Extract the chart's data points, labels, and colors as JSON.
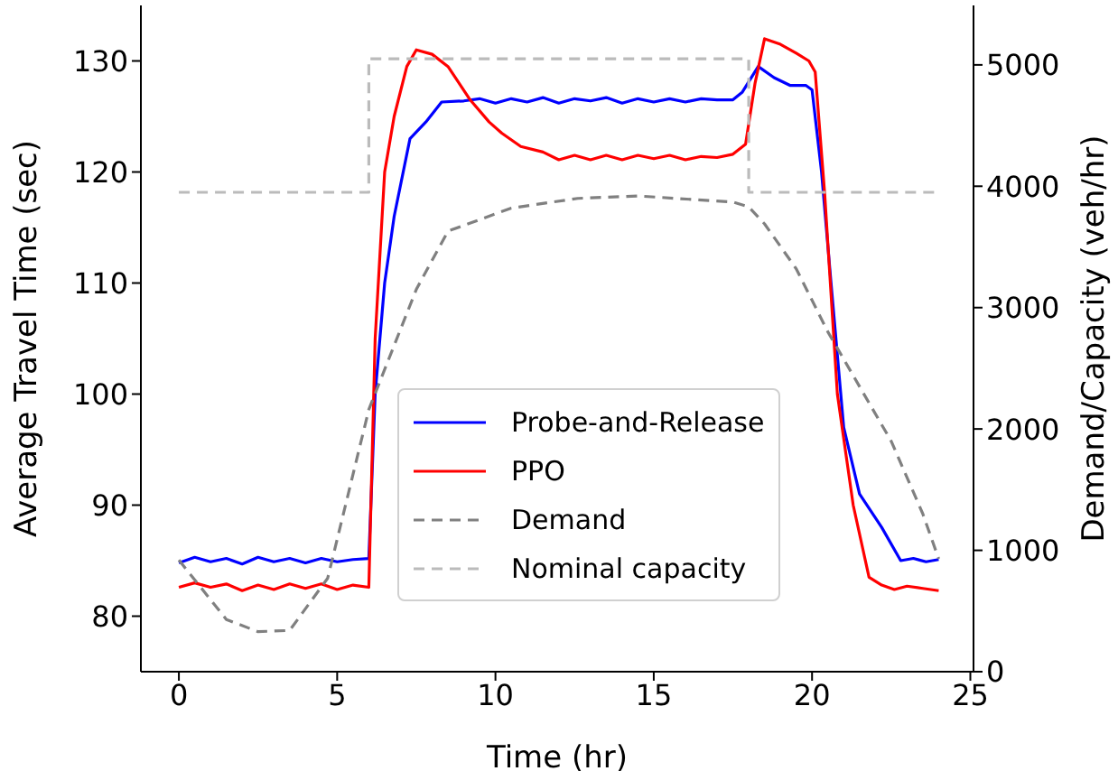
{
  "chart_data": {
    "type": "line",
    "xlabel": "Time (hr)",
    "ylabel": "Average Travel Time (sec)",
    "y2label": "Demand/Capacity (veh/hr)",
    "xlim": [
      -1.2,
      25.1
    ],
    "xticks": [
      0,
      5,
      10,
      15,
      20,
      25
    ],
    "ylim": [
      75,
      135
    ],
    "yticks": [
      80,
      90,
      100,
      110,
      120,
      130
    ],
    "y2lim": [
      0,
      5490
    ],
    "y2ticks": [
      0,
      1000,
      2000,
      3000,
      4000,
      5000
    ],
    "grid": false,
    "legend": "bottom",
    "marker": "none",
    "series": [
      {
        "name": "Probe-and-Release",
        "color": "#0000ff",
        "line_style": "solid",
        "x": [
          0,
          0.5,
          1,
          1.5,
          2,
          2.5,
          3,
          3.5,
          4,
          4.5,
          5,
          5.5,
          6,
          6.2,
          6.5,
          6.8,
          7.3,
          7.8,
          8.3,
          9,
          9.5,
          10,
          10.5,
          11,
          11.5,
          12,
          12.5,
          13,
          13.5,
          14,
          14.5,
          15,
          15.5,
          16,
          16.5,
          17,
          17.5,
          17.8,
          18.3,
          18.8,
          19.3,
          19.8,
          20.0,
          20.3,
          20.6,
          21.0,
          21.5,
          22.2,
          22.8,
          23.2,
          23.6,
          24
        ],
        "values": [
          84.8,
          85.3,
          84.9,
          85.2,
          84.7,
          85.3,
          84.9,
          85.2,
          84.8,
          85.2,
          84.9,
          85.1,
          85.2,
          100,
          110,
          116,
          123,
          124.5,
          126.3,
          126.4,
          126.6,
          126.2,
          126.6,
          126.3,
          126.7,
          126.2,
          126.6,
          126.4,
          126.7,
          126.2,
          126.6,
          126.3,
          126.6,
          126.3,
          126.6,
          126.5,
          126.5,
          127.2,
          129.5,
          128.5,
          127.8,
          127.8,
          127.4,
          120,
          110,
          97,
          91,
          88,
          85,
          85.2,
          84.9,
          85.1
        ]
      },
      {
        "name": "PPO",
        "color": "#ff0000",
        "line_style": "solid",
        "x": [
          0,
          0.5,
          1,
          1.5,
          2,
          2.5,
          3,
          3.5,
          4,
          4.5,
          5,
          5.5,
          6,
          6.2,
          6.5,
          6.8,
          7.2,
          7.5,
          8.0,
          8.5,
          9.2,
          9.8,
          10.2,
          10.8,
          11.5,
          12,
          12.5,
          13,
          13.5,
          14,
          14.5,
          15,
          15.5,
          16,
          16.5,
          17,
          17.5,
          17.9,
          18.2,
          18.5,
          19.0,
          19.5,
          19.9,
          20.1,
          20.4,
          20.8,
          21.3,
          21.8,
          22.2,
          22.6,
          23,
          23.5,
          24
        ],
        "values": [
          82.6,
          83.0,
          82.6,
          82.9,
          82.3,
          82.8,
          82.4,
          82.9,
          82.5,
          82.9,
          82.4,
          82.8,
          82.6,
          105,
          120,
          125,
          129.5,
          131,
          130.6,
          129.5,
          126.5,
          124.5,
          123.5,
          122.3,
          121.8,
          121.1,
          121.5,
          121.1,
          121.5,
          121.1,
          121.5,
          121.2,
          121.5,
          121.1,
          121.4,
          121.3,
          121.6,
          122.5,
          128,
          132,
          131.5,
          130.7,
          130,
          129,
          118,
          100,
          90,
          83.5,
          82.8,
          82.4,
          82.7,
          82.5,
          82.3
        ]
      },
      {
        "name": "Demand",
        "color": "#808080",
        "line_style": "dashed",
        "axis": "y2",
        "x": [
          0,
          1.5,
          2.5,
          3.5,
          4.7,
          6.0,
          7.5,
          8.5,
          10.5,
          12.6,
          14.5,
          17.5,
          18.0,
          18.5,
          19.5,
          20.5,
          21.5,
          22.5,
          23.5,
          24
        ],
        "values": [
          920,
          430,
          330,
          340,
          770,
          2160,
          3150,
          3630,
          3820,
          3900,
          3920,
          3870,
          3830,
          3690,
          3320,
          2800,
          2350,
          1900,
          1300,
          930
        ]
      },
      {
        "name": "Nominal capacity",
        "color": "#bbbbbb",
        "line_style": "dashed",
        "axis": "y2",
        "x": [
          0,
          6,
          6,
          18,
          18,
          24
        ],
        "values": [
          3950,
          3950,
          5050,
          5050,
          3950,
          3950
        ]
      }
    ]
  }
}
